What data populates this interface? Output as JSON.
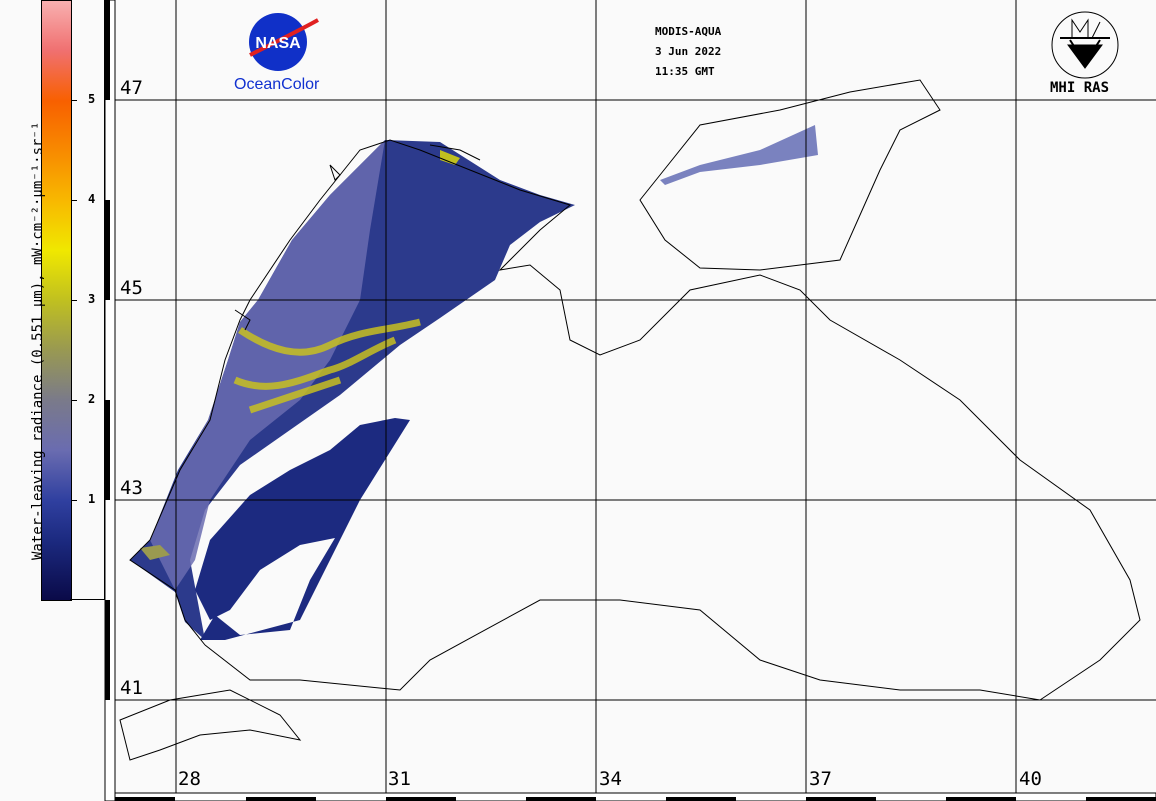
{
  "header": {
    "sensor": "MODIS-AQUA",
    "date": "3 Jun 2022",
    "time": "11:35 GMT"
  },
  "logos": {
    "nasa": "NASA",
    "oceancolor": "OceanColor",
    "mhi": "MHI RAS"
  },
  "colorbar": {
    "title": "Water-leaving radiance (0.551 µm), mW·cm⁻²·µm⁻¹·sr⁻¹",
    "ticks": [
      "1",
      "2",
      "3",
      "4",
      "5"
    ],
    "range": [
      0,
      6
    ]
  },
  "map": {
    "latitudes": [
      "47",
      "45",
      "43",
      "41"
    ],
    "longitudes": [
      "28",
      "31",
      "34",
      "37",
      "40"
    ]
  },
  "colors": {
    "coast": "#000000",
    "grid": "#000000",
    "background": "#fafafa"
  }
}
